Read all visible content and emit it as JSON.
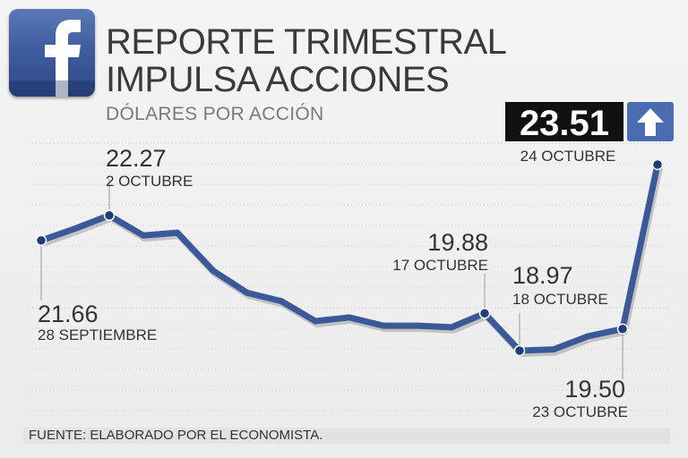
{
  "header": {
    "title_line1": "REPORTE TRIMESTRAL",
    "title_line2": "IMPULSA ACCIONES",
    "subtitle": "DÓLARES POR ACCIÓN"
  },
  "logo": {
    "icon": "facebook-logo-icon",
    "color": "#3b5998"
  },
  "footer": {
    "source": "FUENTE: ELABORADO POR EL ECONOMISTA."
  },
  "highlight": {
    "value": "23.51",
    "date": "24 OCTUBRE",
    "icon": "arrow-up-icon"
  },
  "chart_data": {
    "type": "line",
    "title": "REPORTE TRIMESTRAL IMPULSA ACCIONES",
    "ylabel": "DÓLARES POR ACCIÓN",
    "line_color": "#3b5998",
    "ylim": [
      18.6,
      23.7
    ],
    "grid": true,
    "values": [
      21.66,
      21.95,
      22.27,
      21.78,
      21.85,
      20.92,
      20.38,
      20.18,
      19.69,
      19.78,
      19.58,
      19.58,
      19.54,
      19.88,
      18.97,
      19.0,
      19.32,
      19.5,
      23.51
    ],
    "annotations": [
      {
        "index": 0,
        "value": "21.66",
        "date": "28 SEPTIEMBRE"
      },
      {
        "index": 2,
        "value": "22.27",
        "date": "2 OCTUBRE"
      },
      {
        "index": 13,
        "value": "19.88",
        "date": "17 OCTUBRE"
      },
      {
        "index": 14,
        "value": "18.97",
        "date": "18 OCTUBRE"
      },
      {
        "index": 17,
        "value": "19.50",
        "date": "23 OCTUBRE"
      },
      {
        "index": 18,
        "value": "23.51",
        "date": "24 OCTUBRE"
      }
    ]
  }
}
